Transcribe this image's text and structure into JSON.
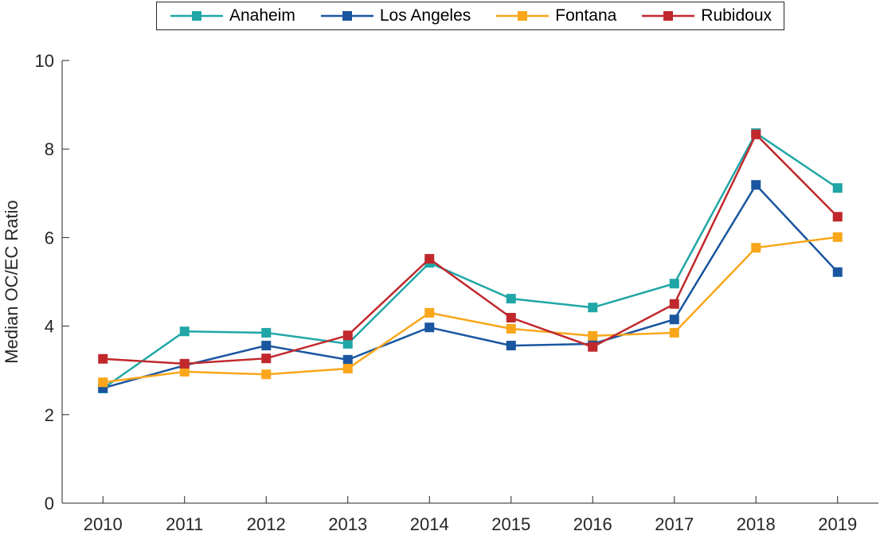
{
  "chart_data": {
    "type": "line",
    "y_label": "Median OC/EC Ratio",
    "x": [
      2010,
      2011,
      2012,
      2013,
      2014,
      2015,
      2016,
      2017,
      2018,
      2019
    ],
    "xlim": [
      2009.5,
      2019.5
    ],
    "xticks": [
      2010,
      2011,
      2012,
      2013,
      2014,
      2015,
      2016,
      2017,
      2018,
      2019
    ],
    "ylim": [
      0,
      10
    ],
    "yticks": [
      0,
      2,
      4,
      6,
      8,
      10
    ],
    "legend": "top",
    "series": [
      {
        "name": "Anaheim",
        "color": "#20a6a6",
        "values": [
          2.59,
          3.88,
          3.85,
          3.6,
          5.43,
          4.62,
          4.42,
          4.96,
          8.36,
          7.12
        ]
      },
      {
        "name": "Los Angeles",
        "color": "#1a56a0",
        "values": [
          2.6,
          3.11,
          3.56,
          3.24,
          3.97,
          3.56,
          3.6,
          4.15,
          7.19,
          5.22
        ]
      },
      {
        "name": "Fontana",
        "color": "#f9a61a",
        "values": [
          2.73,
          2.97,
          2.91,
          3.04,
          4.3,
          3.94,
          3.78,
          3.85,
          5.77,
          6.01
        ]
      },
      {
        "name": "Rubidoux",
        "color": "#c0282c",
        "values": [
          3.26,
          3.15,
          3.27,
          3.79,
          5.52,
          4.19,
          3.53,
          4.5,
          8.33,
          6.47
        ]
      }
    ]
  }
}
